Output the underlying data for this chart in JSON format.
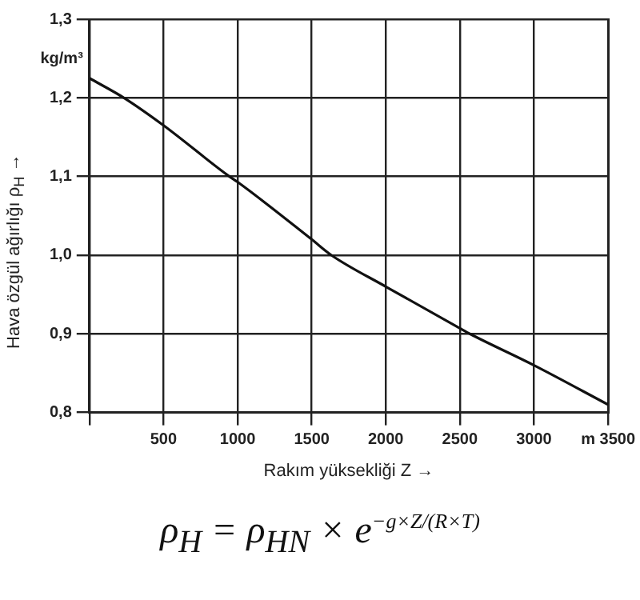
{
  "chart_data": {
    "type": "line",
    "xlabel": "Rakım yüksekliği Z →",
    "ylabel": "Hava özgül ağırlığı ρ$_{H}$ →",
    "x": [
      0,
      233,
      500,
      945,
      1000,
      1500,
      1633,
      2000,
      2500,
      2567,
      3000,
      3500
    ],
    "series": [
      {
        "color": "#111111",
        "values": [
          1.225,
          1.2,
          1.165,
          1.1,
          1.093,
          1.02,
          1.0,
          0.96,
          0.907,
          0.9,
          0.86,
          0.81
        ]
      }
    ],
    "xlim": [
      0,
      3500
    ],
    "xticks": [
      {
        "value": 0,
        "label": null
      },
      500,
      1000,
      1500,
      2000,
      2500,
      3000,
      {
        "value": 3500,
        "label": "m 3500"
      }
    ],
    "ylim": [
      0.8,
      1.3
    ],
    "yticks": [
      {
        "value": 0.8,
        "label": "0,8"
      },
      {
        "value": 0.9,
        "label": "0,9"
      },
      {
        "value": 1.0,
        "label": "1,0"
      },
      {
        "value": 1.1,
        "label": "1,1"
      },
      {
        "value": 1.2,
        "label": "1,2"
      },
      {
        "value": 1.3,
        "label": "1,3"
      }
    ],
    "grid": true,
    "legend": false,
    "marker": "none",
    "line_style": "solid",
    "annotations": [
      "kg/m³",
      "ρ$_{H}$ = ρ$_{HN}$ × e$^{−g×Z/(R×T)}$"
    ]
  }
}
